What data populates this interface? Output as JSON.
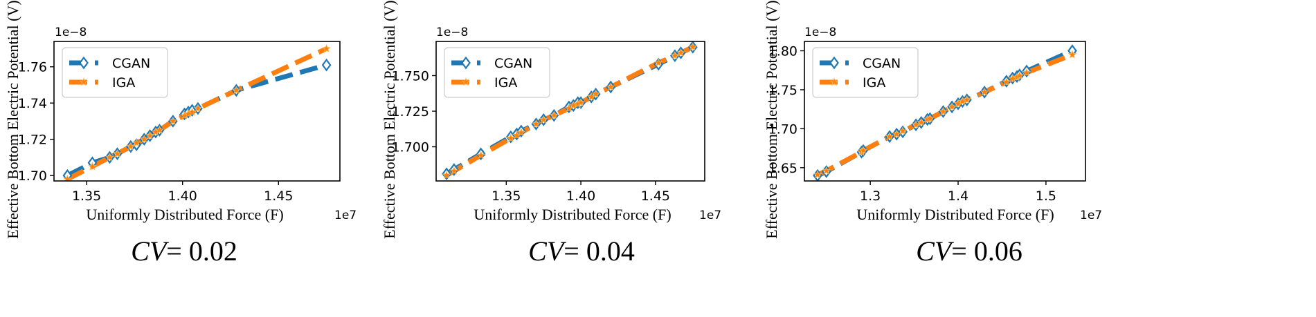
{
  "colors": {
    "cgan": "#1f77b4",
    "iga": "#ff7f0e"
  },
  "chart_data": [
    {
      "type": "line",
      "caption_var": "CV",
      "caption_value": "= 0.02",
      "xlabel": "Uniformly Distributed Force (F)",
      "ylabel": "Effective Bottom Electric Potential (V)",
      "x_offset_label": "1e7",
      "y_offset_label": "1e−8",
      "xlim": [
        1.333,
        1.482
      ],
      "ylim": [
        1.697,
        1.774
      ],
      "xticks": [
        1.35,
        1.4,
        1.45
      ],
      "xtick_labels": [
        "1.35",
        "1.40",
        "1.45"
      ],
      "yticks": [
        1.7,
        1.72,
        1.74,
        1.76
      ],
      "ytick_labels": [
        "1.70",
        "1.72",
        "1.74",
        "1.76"
      ],
      "legend_position": "upper-left",
      "series": [
        {
          "name": "CGAN",
          "marker": "diamond",
          "x": [
            1.34,
            1.353,
            1.362,
            1.366,
            1.373,
            1.376,
            1.38,
            1.383,
            1.386,
            1.388,
            1.395,
            1.401,
            1.403,
            1.405,
            1.408,
            1.428,
            1.475
          ],
          "y": [
            1.7,
            1.707,
            1.71,
            1.712,
            1.716,
            1.717,
            1.72,
            1.722,
            1.724,
            1.725,
            1.73,
            1.734,
            1.735,
            1.736,
            1.737,
            1.747,
            1.761
          ]
        },
        {
          "name": "IGA",
          "marker": "star",
          "x": [
            1.34,
            1.353,
            1.362,
            1.366,
            1.373,
            1.376,
            1.38,
            1.383,
            1.386,
            1.388,
            1.395,
            1.401,
            1.403,
            1.405,
            1.408,
            1.428,
            1.475
          ],
          "y": [
            1.698,
            1.705,
            1.71,
            1.712,
            1.716,
            1.718,
            1.72,
            1.722,
            1.724,
            1.725,
            1.73,
            1.733,
            1.734,
            1.735,
            1.737,
            1.747,
            1.77
          ]
        }
      ]
    },
    {
      "type": "line",
      "caption_var": "CV",
      "caption_value": "= 0.04",
      "xlabel": "Uniformly Distributed Force (F)",
      "ylabel": "Effective Bottom Electric Potential (V)",
      "x_offset_label": "1e7",
      "y_offset_label": "1e−8",
      "xlim": [
        1.303,
        1.483
      ],
      "ylim": [
        1.676,
        1.774
      ],
      "xticks": [
        1.35,
        1.4,
        1.45
      ],
      "xtick_labels": [
        "1.35",
        "1.40",
        "1.45"
      ],
      "yticks": [
        1.7,
        1.725,
        1.75
      ],
      "ytick_labels": [
        "1.700",
        "1.725",
        "1.750"
      ],
      "legend_position": "upper-left",
      "series": [
        {
          "name": "CGAN",
          "marker": "diamond",
          "x": [
            1.31,
            1.315,
            1.333,
            1.353,
            1.357,
            1.36,
            1.37,
            1.375,
            1.382,
            1.392,
            1.395,
            1.398,
            1.4,
            1.407,
            1.41,
            1.42,
            1.452,
            1.463,
            1.467,
            1.475
          ],
          "y": [
            1.681,
            1.684,
            1.695,
            1.707,
            1.709,
            1.711,
            1.716,
            1.719,
            1.722,
            1.728,
            1.729,
            1.731,
            1.731,
            1.735,
            1.737,
            1.742,
            1.758,
            1.764,
            1.766,
            1.77
          ]
        },
        {
          "name": "IGA",
          "marker": "star",
          "x": [
            1.31,
            1.315,
            1.333,
            1.353,
            1.357,
            1.36,
            1.37,
            1.375,
            1.382,
            1.392,
            1.395,
            1.398,
            1.4,
            1.407,
            1.41,
            1.42,
            1.452,
            1.463,
            1.467,
            1.475
          ],
          "y": [
            1.68,
            1.683,
            1.694,
            1.706,
            1.708,
            1.71,
            1.716,
            1.719,
            1.722,
            1.727,
            1.729,
            1.73,
            1.731,
            1.735,
            1.737,
            1.742,
            1.759,
            1.764,
            1.766,
            1.77
          ]
        }
      ]
    },
    {
      "type": "line",
      "caption_var": "CV",
      "caption_value": "= 0.06",
      "xlabel": "Uniformly Distributed Force (F)",
      "ylabel": "Effective Bottom Electric Potential (V)",
      "x_offset_label": "1e7",
      "y_offset_label": "1e−8",
      "xlim": [
        1.225,
        1.545
      ],
      "ylim": [
        1.633,
        1.812
      ],
      "xticks": [
        1.3,
        1.4,
        1.5
      ],
      "xtick_labels": [
        "1.3",
        "1.4",
        "1.5"
      ],
      "yticks": [
        1.65,
        1.7,
        1.75,
        1.8
      ],
      "ytick_labels": [
        "1.65",
        "1.70",
        "1.75",
        "1.80"
      ],
      "legend_position": "upper-left",
      "series": [
        {
          "name": "CGAN",
          "marker": "diamond",
          "x": [
            1.24,
            1.25,
            1.29,
            1.292,
            1.322,
            1.33,
            1.337,
            1.352,
            1.358,
            1.365,
            1.368,
            1.383,
            1.393,
            1.4,
            1.405,
            1.41,
            1.43,
            1.455,
            1.462,
            1.467,
            1.47,
            1.478,
            1.53
          ],
          "y": [
            1.64,
            1.645,
            1.67,
            1.672,
            1.69,
            1.693,
            1.696,
            1.705,
            1.708,
            1.712,
            1.713,
            1.722,
            1.728,
            1.732,
            1.735,
            1.737,
            1.747,
            1.761,
            1.765,
            1.767,
            1.769,
            1.774,
            1.8
          ]
        },
        {
          "name": "IGA",
          "marker": "star",
          "x": [
            1.24,
            1.25,
            1.29,
            1.292,
            1.322,
            1.33,
            1.337,
            1.352,
            1.358,
            1.365,
            1.368,
            1.383,
            1.393,
            1.4,
            1.405,
            1.41,
            1.43,
            1.455,
            1.462,
            1.467,
            1.47,
            1.478,
            1.53
          ],
          "y": [
            1.641,
            1.646,
            1.67,
            1.672,
            1.69,
            1.693,
            1.697,
            1.705,
            1.708,
            1.712,
            1.713,
            1.722,
            1.728,
            1.732,
            1.735,
            1.737,
            1.747,
            1.76,
            1.764,
            1.766,
            1.768,
            1.772,
            1.795
          ]
        }
      ]
    }
  ]
}
